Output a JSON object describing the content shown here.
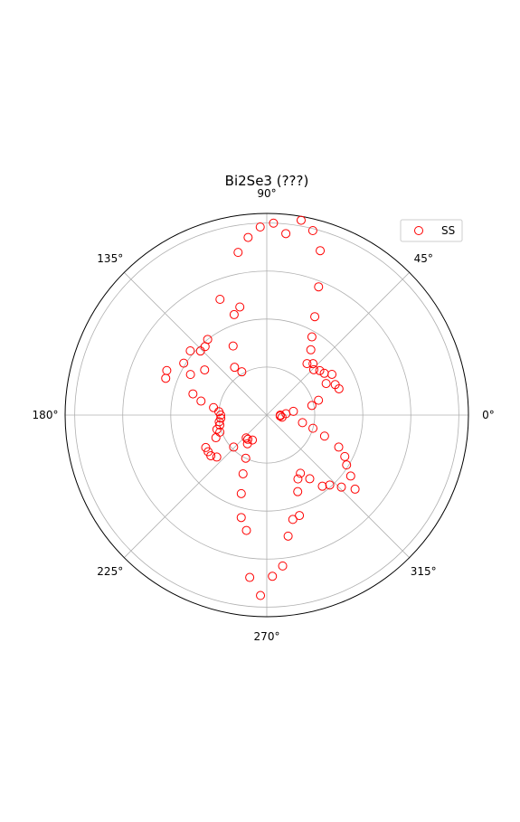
{
  "chart_data": {
    "type": "scatter",
    "projection": "polar",
    "title": "Bi2Se3 (???)",
    "angle_unit": "degrees",
    "angle_tick_labels": [
      "0°",
      "45°",
      "90°",
      "135°",
      "180°",
      "225°",
      "270°",
      "315°"
    ],
    "angle_ticks": [
      0,
      45,
      90,
      135,
      180,
      225,
      270,
      315
    ],
    "radial_gridlines": [
      0.25,
      0.5,
      0.75,
      1.0
    ],
    "radial_tick_labels_shown": false,
    "rlim": [
      0,
      1.05
    ],
    "grid": true,
    "legend": {
      "placement": "top-right"
    },
    "colors": {
      "marker": "#ff0000",
      "grid": "#b0b0b0",
      "frame": "#000000"
    },
    "series": [
      {
        "name": "SS",
        "marker": "open-circle",
        "theta_deg": [
          0,
          4,
          8,
          12,
          16,
          20,
          24,
          28,
          32,
          36,
          40,
          44,
          48,
          52,
          56,
          60,
          64,
          68,
          72,
          76,
          80,
          84,
          88,
          92,
          96,
          100,
          104,
          108,
          112,
          116,
          120,
          124,
          128,
          132,
          136,
          140,
          144,
          148,
          152,
          156,
          160,
          164,
          168,
          172,
          176,
          180,
          184,
          188,
          192,
          196,
          200,
          204,
          208,
          212,
          216,
          220,
          224,
          228,
          232,
          236,
          240,
          244,
          248,
          252,
          256,
          260,
          264,
          268,
          272,
          276,
          280,
          284,
          288,
          292,
          296,
          300,
          304,
          308,
          312,
          316,
          320,
          324,
          328,
          332,
          336,
          340,
          344,
          348,
          352,
          356
        ],
        "r": [
          0.07,
          0.1,
          0.14,
          0.24,
          0.28,
          0.4,
          0.39,
          0.35,
          0.4,
          0.37,
          0.36,
          0.34,
          0.36,
          0.34,
          0.41,
          0.47,
          0.57,
          0.72,
          0.9,
          0.99,
          1.03,
          0.95,
          1.0,
          0.98,
          0.93,
          0.86,
          0.58,
          0.55,
          0.65,
          0.4,
          0.26,
          0.3,
          0.5,
          0.48,
          0.48,
          0.52,
          0.4,
          0.51,
          0.45,
          0.57,
          0.56,
          0.4,
          0.35,
          0.28,
          0.25,
          0.24,
          0.24,
          0.25,
          0.25,
          0.27,
          0.26,
          0.29,
          0.36,
          0.36,
          0.36,
          0.34,
          0.24,
          0.16,
          0.16,
          0.18,
          0.15,
          0.25,
          0.33,
          0.43,
          0.55,
          0.61,
          0.85,
          0.94,
          0.84,
          0.79,
          0.64,
          0.56,
          0.55,
          0.43,
          0.37,
          0.35,
          0.4,
          0.47,
          0.49,
          0.54,
          0.6,
          0.54,
          0.49,
          0.46,
          0.41,
          0.32,
          0.25,
          0.19,
          0.08,
          0.07
        ]
      }
    ]
  }
}
